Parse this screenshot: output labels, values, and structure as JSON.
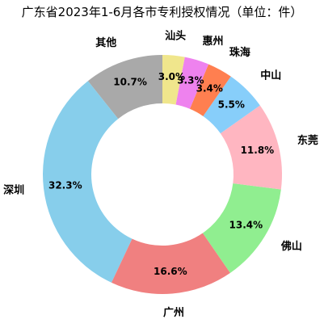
{
  "chart_data": {
    "type": "pie",
    "title": "广东省2023年1-6月各市专利授权情况（单位：件）",
    "categories": [
      "其他",
      "深圳",
      "广州",
      "佛山",
      "东莞",
      "中山",
      "珠海",
      "惠州",
      "汕头"
    ],
    "values": [
      10.7,
      32.3,
      16.6,
      13.4,
      11.8,
      5.5,
      3.4,
      3.3,
      3.0
    ],
    "percent_labels": [
      "10.7%",
      "32.3%",
      "16.6%",
      "13.4%",
      "11.8%",
      "5.5%",
      "3.4%",
      "3.3%",
      "3.0%"
    ],
    "colors": [
      "#a9a9a9",
      "#87ceeb",
      "#f08080",
      "#90ee90",
      "#ffb6c1",
      "#87cefa",
      "#ff7f50",
      "#ee82ee",
      "#f0e68c"
    ],
    "start_angle_deg": 90,
    "direction": "counterclockwise",
    "donut": true,
    "legend": "none"
  }
}
